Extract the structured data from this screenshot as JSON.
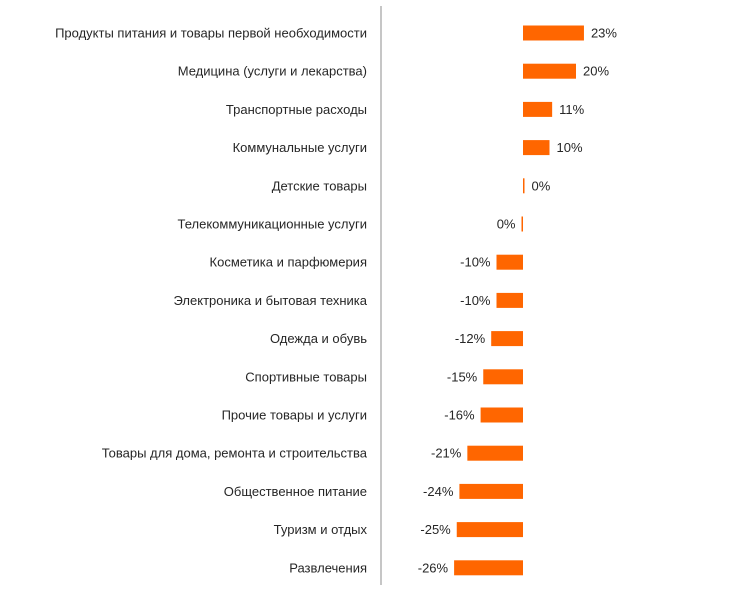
{
  "chart_data": {
    "type": "bar",
    "orientation": "horizontal",
    "title": "",
    "xlabel": "",
    "ylabel": "",
    "categories": [
      "Продукты питания и товары первой необходимости",
      "Медицина (услуги и лекарства)",
      "Транспортные расходы",
      "Коммунальные услуги",
      "Детские товары",
      "Телекоммуникационные услуги",
      "Косметика и парфюмерия",
      "Электроника и бытовая техника",
      "Одежда и обувь",
      "Спортивные товары",
      "Прочие товары и услуги",
      "Товары для дома, ремонта и строительства",
      "Общественное питание",
      "Туризм и отдых",
      "Развлечения"
    ],
    "values": [
      23,
      20,
      11,
      10,
      0.3,
      -0.3,
      -10,
      -10,
      -12,
      -15,
      -16,
      -21,
      -24,
      -25,
      -26
    ],
    "data_labels": [
      "23%",
      "20%",
      "11%",
      "10%",
      "0%",
      "0%",
      "-10%",
      "-10%",
      "-12%",
      "-15%",
      "-16%",
      "-21%",
      "-24%",
      "-25%",
      "-26%"
    ],
    "unit": "%",
    "grid": false,
    "legend": "none",
    "colors": {
      "bar": "#ff6600",
      "text": "#262626",
      "divider": "#8c8c8c"
    }
  }
}
